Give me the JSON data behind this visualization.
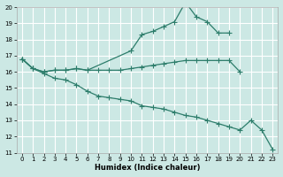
{
  "xlabel": "Humidex (Indice chaleur)",
  "line_color": "#2d7d6b",
  "bg_color": "#cce8e4",
  "grid_color": "#ffffff",
  "xlim_min": -0.5,
  "xlim_max": 23.5,
  "ylim_min": 11,
  "ylim_max": 20,
  "yticks": [
    11,
    12,
    13,
    14,
    15,
    16,
    17,
    18,
    19,
    20
  ],
  "xticks": [
    0,
    1,
    2,
    3,
    4,
    5,
    6,
    7,
    8,
    9,
    10,
    11,
    12,
    13,
    14,
    15,
    16,
    17,
    18,
    19,
    20,
    21,
    22,
    23
  ],
  "curve_upper_x": [
    0,
    1,
    2,
    3,
    4,
    5,
    6,
    10,
    11,
    12,
    13,
    14,
    15,
    16,
    17,
    18,
    19
  ],
  "curve_upper_y": [
    16.8,
    16.2,
    16.0,
    16.1,
    16.1,
    16.2,
    16.1,
    17.3,
    18.3,
    18.5,
    18.8,
    19.1,
    20.3,
    19.4,
    19.1,
    18.4,
    18.4
  ],
  "curve_flat_x": [
    0,
    1,
    2,
    3,
    4,
    5,
    6,
    7,
    8,
    9,
    10,
    11,
    12,
    13,
    14,
    15,
    16,
    17,
    18,
    19,
    20
  ],
  "curve_flat_y": [
    16.8,
    16.2,
    16.0,
    16.1,
    16.1,
    16.2,
    16.1,
    16.1,
    16.1,
    16.1,
    16.2,
    16.3,
    16.4,
    16.5,
    16.6,
    16.7,
    16.7,
    16.7,
    16.7,
    16.7,
    16.0
  ],
  "curve_lower_x": [
    0,
    1,
    2,
    3,
    4,
    5,
    6,
    7,
    8,
    9,
    10,
    11,
    12,
    13,
    14,
    15,
    16,
    17,
    18,
    19,
    20,
    21,
    22,
    23
  ],
  "curve_lower_y": [
    16.8,
    16.2,
    15.9,
    15.6,
    15.5,
    15.2,
    14.8,
    14.5,
    14.4,
    14.3,
    14.2,
    13.9,
    13.8,
    13.7,
    13.5,
    13.3,
    13.2,
    13.0,
    12.8,
    12.6,
    12.4,
    13.0,
    12.4,
    11.2
  ]
}
